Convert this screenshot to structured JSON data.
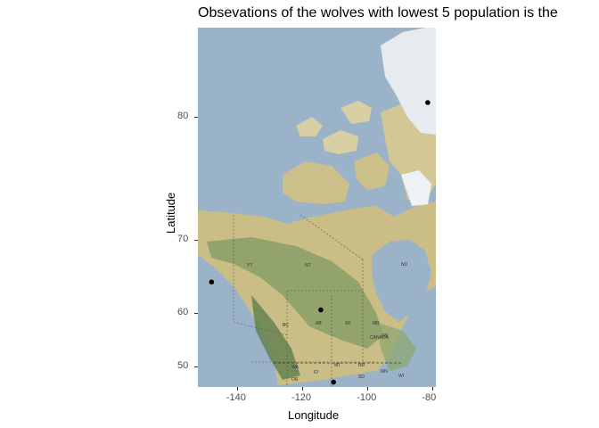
{
  "title": "Obsevations of the wolves with lowest 5 population is the",
  "axes": {
    "xlabel": "Longitude",
    "ylabel": "Latitude",
    "xticks": [
      "-140",
      "-120",
      "-100",
      "-80"
    ],
    "yticks": [
      "80",
      "70",
      "60",
      "50"
    ]
  },
  "chart_data": {
    "type": "scatter",
    "title": "Obsevations of the wolves with lowest 5 population is the",
    "xlabel": "Longitude",
    "ylabel": "Latitude",
    "xlim": [
      -152,
      -79
    ],
    "ylim": [
      45.5,
      84
    ],
    "x_ticks": [
      -140,
      -120,
      -100,
      -80
    ],
    "y_ticks": [
      50,
      60,
      70,
      80
    ],
    "grid": false,
    "points": [
      {
        "x": -147.8,
        "y": 64.7
      },
      {
        "x": -114.3,
        "y": 60.5
      },
      {
        "x": -110.4,
        "y": 46.6
      },
      {
        "x": -81.5,
        "y": 80.8
      }
    ]
  },
  "colors": {
    "ocean": "#9bb3c9",
    "land": "#cfc28c",
    "forest": "#7f9b63",
    "ice": "#e9eef3",
    "point": "#000000"
  },
  "map_labels": [
    "NT",
    "NU",
    "BC",
    "AB",
    "SK",
    "MB",
    "ON",
    "CANADA",
    "YT",
    "WA",
    "OR",
    "ID",
    "MT",
    "ND",
    "SD",
    "MN",
    "WI"
  ]
}
